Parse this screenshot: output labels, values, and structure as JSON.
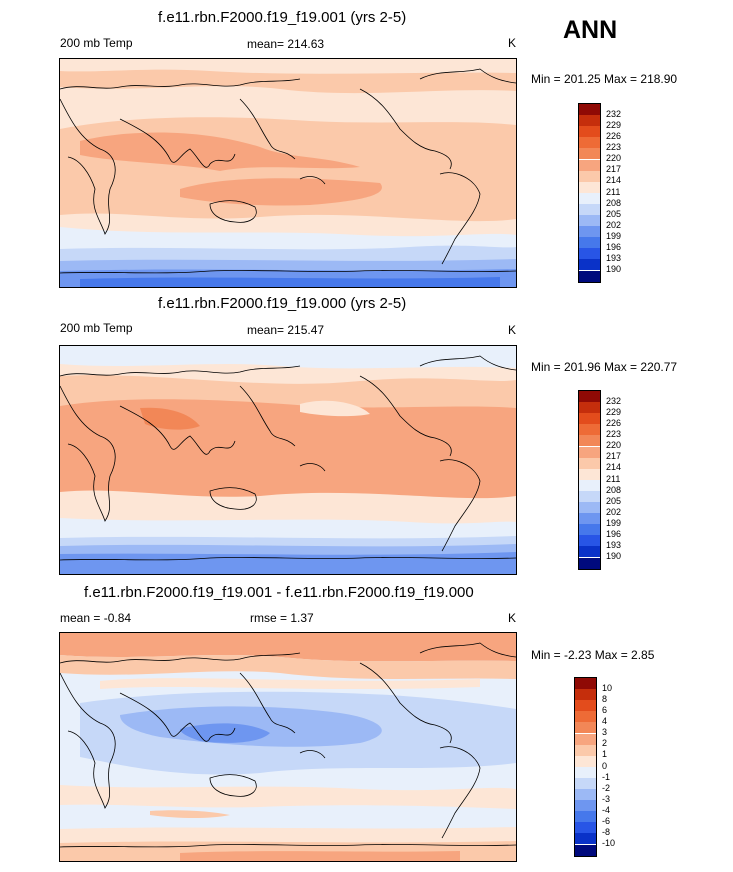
{
  "season": "ANN",
  "colors": {
    "abs_levels": [
      "#000a7d",
      "#0a32c8",
      "#2855e6",
      "#4678eb",
      "#6e96f0",
      "#9cb9f5",
      "#c6d8f8",
      "#e8f0fb",
      "#fde6d6",
      "#fbc9aa",
      "#f7a57f",
      "#f28757",
      "#ee6b36",
      "#e34c1c",
      "#c52e0c",
      "#8f0a05"
    ],
    "diff_levels": [
      "#000a7d",
      "#0a32c8",
      "#2855e6",
      "#4678eb",
      "#6e96f0",
      "#9cb9f5",
      "#c6d8f8",
      "#e8f0fb",
      "#fde6d6",
      "#fbc9aa",
      "#f7a57f",
      "#f28757",
      "#ee6b36",
      "#e34c1c",
      "#c52e0c",
      "#8f0a05"
    ]
  },
  "panels": [
    {
      "title": "f.e11.rbn.F2000.f19_f19.001 (yrs 2-5)",
      "left_label": "200 mb Temp",
      "center_label": "mean= 214.63",
      "units": "K",
      "minmax": "Min = 201.25 Max = 218.90",
      "ticks": [
        "232",
        "229",
        "226",
        "223",
        "220",
        "217",
        "214",
        "211",
        "208",
        "205",
        "202",
        "199",
        "196",
        "193",
        "190"
      ],
      "chart_data": {
        "type": "heatmap",
        "field": "200 mb Temp",
        "projection": "cylindrical equidistant, 0-360E",
        "min": 201.25,
        "max": 218.9,
        "mean": 214.63,
        "contour_levels": [
          190,
          193,
          196,
          199,
          202,
          205,
          208,
          211,
          214,
          217,
          220,
          223,
          226,
          229,
          232
        ],
        "colorbar": "blue-white-red, 16 bins"
      }
    },
    {
      "title": "f.e11.rbn.F2000.f19_f19.000 (yrs 2-5)",
      "left_label": "200 mb Temp",
      "center_label": "mean= 215.47",
      "units": "K",
      "minmax": "Min = 201.96 Max = 220.77",
      "ticks": [
        "232",
        "229",
        "226",
        "223",
        "220",
        "217",
        "214",
        "211",
        "208",
        "205",
        "202",
        "199",
        "196",
        "193",
        "190"
      ],
      "chart_data": {
        "type": "heatmap",
        "field": "200 mb Temp",
        "projection": "cylindrical equidistant, 0-360E",
        "min": 201.96,
        "max": 220.77,
        "mean": 215.47,
        "contour_levels": [
          190,
          193,
          196,
          199,
          202,
          205,
          208,
          211,
          214,
          217,
          220,
          223,
          226,
          229,
          232
        ],
        "colorbar": "blue-white-red, 16 bins"
      }
    },
    {
      "title": "f.e11.rbn.F2000.f19_f19.001 - f.e11.rbn.F2000.f19_f19.000",
      "left_label": "mean =  -0.84",
      "center_label": "rmse =  1.37",
      "units": "K",
      "minmax": "Min =  -2.23 Max =   2.85",
      "ticks": [
        "10",
        "8",
        "6",
        "4",
        "3",
        "2",
        "1",
        "0",
        "-1",
        "-2",
        "-3",
        "-4",
        "-6",
        "-8",
        "-10"
      ],
      "chart_data": {
        "type": "heatmap",
        "field": "200 mb Temp difference",
        "projection": "cylindrical equidistant, 0-360E",
        "min": -2.23,
        "max": 2.85,
        "mean": -0.84,
        "rmse": 1.37,
        "contour_levels": [
          -10,
          -8,
          -6,
          -4,
          -3,
          -2,
          -1,
          0,
          1,
          2,
          3,
          4,
          6,
          8,
          10
        ],
        "colorbar": "blue-white-red, 16 bins"
      }
    }
  ]
}
